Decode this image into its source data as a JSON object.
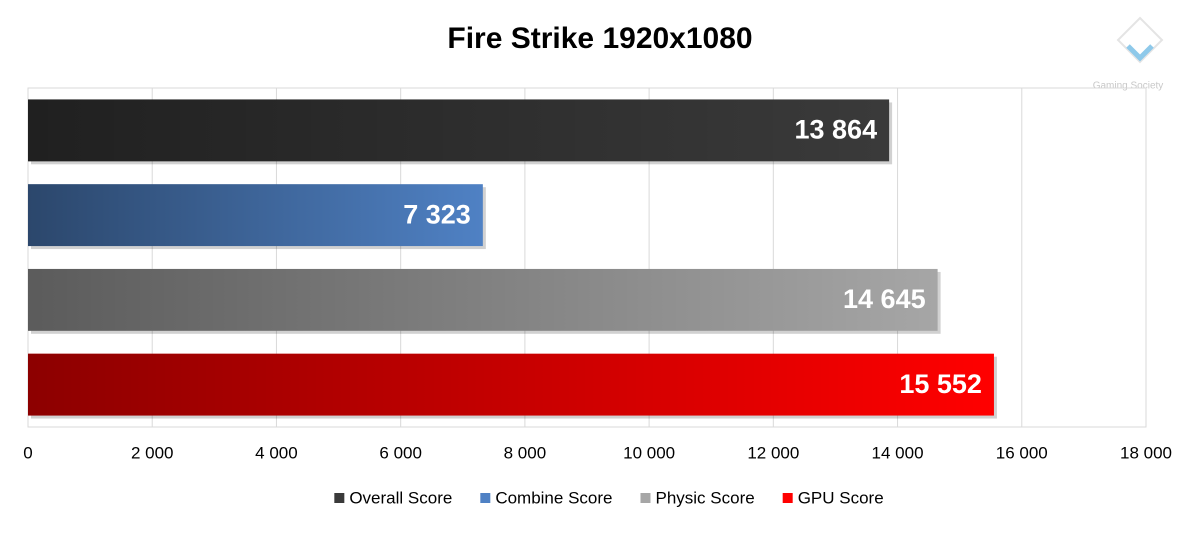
{
  "chart_data": {
    "type": "bar",
    "orientation": "horizontal",
    "title": "Fire Strike 1920x1080",
    "watermark": "Gaming Society",
    "series": [
      {
        "name": "Overall Score",
        "color": "#3a3a3a",
        "values": [
          13864
        ],
        "value_labels": [
          "13 864"
        ]
      },
      {
        "name": "Combine Score",
        "color": "#4f81c4",
        "values": [
          7323
        ],
        "value_labels": [
          "7 323"
        ]
      },
      {
        "name": "Physic Score",
        "color": "#a6a6a6",
        "values": [
          14645
        ],
        "value_labels": [
          "14 645"
        ]
      },
      {
        "name": "GPU Score",
        "color": "#ff0000",
        "values": [
          15552
        ],
        "value_labels": [
          "15 552"
        ]
      }
    ],
    "xlim": [
      0,
      18000
    ],
    "xticks": [
      0,
      {
        "value": 2000,
        "label": "2 000"
      },
      {
        "value": 4000,
        "label": "4 000"
      },
      {
        "value": 6000,
        "label": "6 000"
      },
      {
        "value": 8000,
        "label": "8 000"
      },
      {
        "value": 10000,
        "label": "10 000"
      },
      {
        "value": 12000,
        "label": "12 000"
      },
      {
        "value": 14000,
        "label": "14 000"
      },
      {
        "value": 16000,
        "label": "16 000"
      },
      {
        "value": 18000,
        "label": "18 000"
      }
    ],
    "grid": true,
    "legend": "bottom"
  }
}
